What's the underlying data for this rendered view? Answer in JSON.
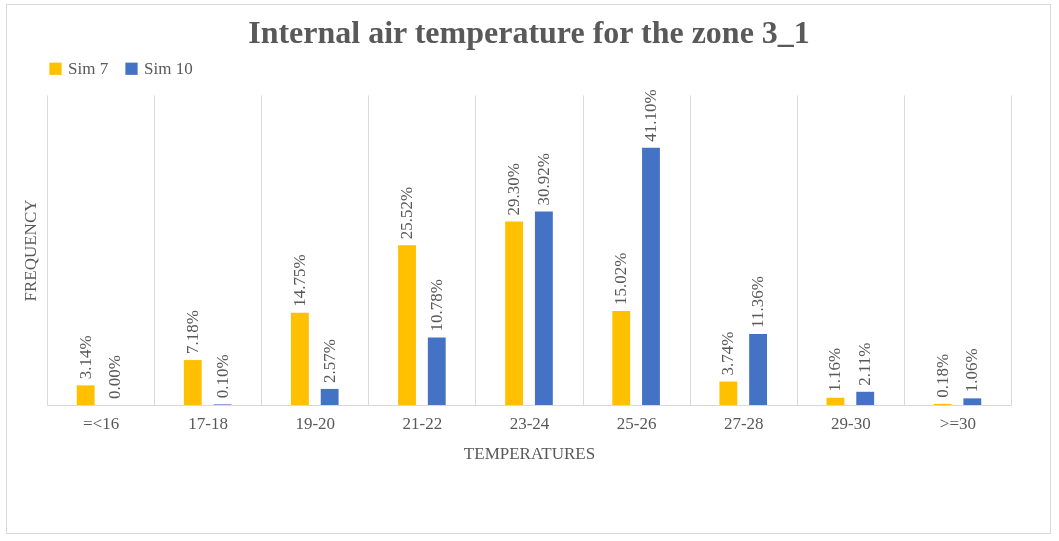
{
  "chart_data": {
    "type": "bar",
    "title": "Internal air temperature for the zone 3_1",
    "xlabel": "TEMPERATURES",
    "ylabel": "FREQUENCY",
    "categories": [
      "=<16",
      "17-18",
      "19-20",
      "21-22",
      "23-24",
      "25-26",
      "27-28",
      "29-30",
      ">=30"
    ],
    "series": [
      {
        "name": "Sim 7",
        "color": "#ffc000",
        "values": [
          3.14,
          7.18,
          14.75,
          25.52,
          29.3,
          15.02,
          3.74,
          1.16,
          0.18
        ],
        "value_labels": [
          "3.14%",
          "7.18%",
          "14.75%",
          "25.52%",
          "29.30%",
          "15.02%",
          "3.74%",
          "1.16%",
          "0.18%"
        ]
      },
      {
        "name": "Sim 10",
        "color": "#4472c4",
        "values": [
          0,
          0.1,
          2.57,
          10.78,
          30.92,
          41.1,
          11.36,
          2.11,
          1.06
        ],
        "value_labels": [
          "0.00%",
          "0.10%",
          "2.57%",
          "10.78%",
          "30.92%",
          "41.10%",
          "11.36%",
          "2.11%",
          "1.06%"
        ]
      }
    ],
    "grid": "x",
    "legend": "top"
  }
}
